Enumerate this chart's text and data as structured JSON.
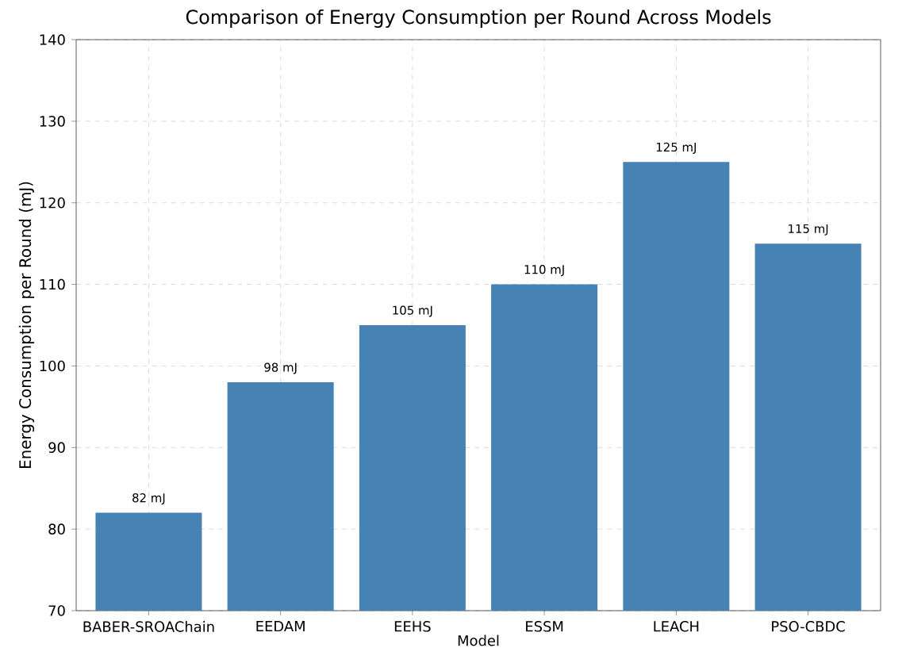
{
  "chart_data": {
    "type": "bar",
    "title": "Comparison of Energy Consumption per Round Across Models",
    "xlabel": "Model",
    "ylabel": "Energy Consumption per Round (mJ)",
    "categories": [
      "BABER-SROAChain",
      "EEDAM",
      "EEHS",
      "ESSM",
      "LEACH",
      "PSO-CBDC"
    ],
    "values": [
      82,
      98,
      105,
      110,
      125,
      115
    ],
    "value_labels": [
      "82 mJ",
      "98 mJ",
      "105 mJ",
      "110 mJ",
      "125 mJ",
      "115 mJ"
    ],
    "color": "#4682b4",
    "ylim": [
      70,
      140
    ],
    "yticks": [
      70,
      80,
      90,
      100,
      110,
      120,
      130,
      140
    ],
    "grid": true
  }
}
